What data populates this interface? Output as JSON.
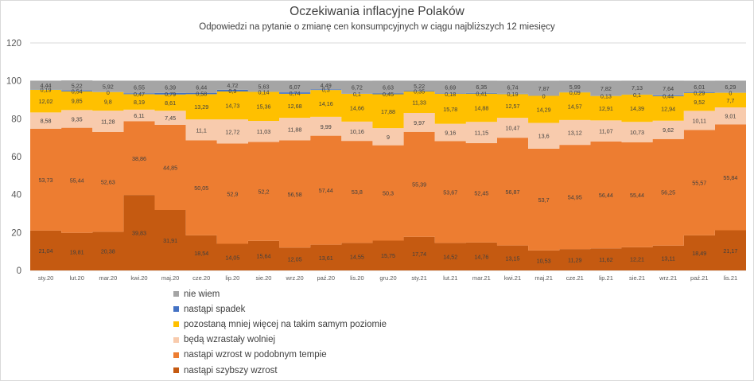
{
  "title": "Oczekiwania inflacyjne Polaków",
  "subtitle": "Odpowiedzi na pytanie o zmianę cen konsumpcyjnych w ciągu najbliższych 12 miesięcy",
  "legend": [
    {
      "label": "nie wiem",
      "color": "#a5a5a5"
    },
    {
      "label": "nastąpi spadek",
      "color": "#4472c4"
    },
    {
      "label": "pozostaną mniej więcej na takim samym poziomie",
      "color": "#ffc000"
    },
    {
      "label": "będą wzrastały wolniej",
      "color": "#f8cbad"
    },
    {
      "label": "nastąpi wzrost w podobnym tempie",
      "color": "#ed7d31"
    },
    {
      "label": "nastąpi szybszy wzrost",
      "color": "#c55a11"
    }
  ],
  "chart_data": {
    "type": "area",
    "stacked": true,
    "title": "Oczekiwania inflacyjne Polaków",
    "subtitle": "Odpowiedzi na pytanie o zmianę cen konsumpcyjnych w ciągu najbliższych 12 miesięcy",
    "xlabel": "",
    "ylabel": "",
    "ylim": [
      0,
      120
    ],
    "yticks": [
      0,
      20,
      40,
      60,
      80,
      100,
      120
    ],
    "grid": true,
    "legend_position": "bottom",
    "categories": [
      "sty.20",
      "lut.20",
      "mar.20",
      "kwi.20",
      "maj.20",
      "cze.20",
      "lip.20",
      "sie.20",
      "wrz.20",
      "paź.20",
      "lis.20",
      "gru.20",
      "sty.21",
      "lut.21",
      "mar.21",
      "kwi.21",
      "maj.21",
      "cze.21",
      "lip.21",
      "sie.21",
      "wrz.21",
      "paź.21",
      "lis.21"
    ],
    "series": [
      {
        "name": "nastąpi szybszy wzrost",
        "color": "#c55a11",
        "label_color": "#3f3f3f",
        "values": [
          21.04,
          19.81,
          20.38,
          39.83,
          31.91,
          18.54,
          14.05,
          15.64,
          12.05,
          13.61,
          14.55,
          15.75,
          17.74,
          14.52,
          14.76,
          13.15,
          10.53,
          11.29,
          11.62,
          12.21,
          13.11,
          18.49,
          21.17
        ]
      },
      {
        "name": "nastąpi wzrost w podobnym tempie",
        "color": "#ed7d31",
        "label_color": "#3f3f3f",
        "values": [
          53.73,
          55.44,
          52.63,
          38.86,
          44.85,
          50.05,
          52.9,
          52.2,
          56.58,
          57.44,
          53.8,
          50.3,
          55.39,
          53.67,
          52.45,
          56.87,
          53.7,
          54.95,
          56.44,
          55.44,
          56.25,
          55.57,
          55.84
        ]
      },
      {
        "name": "będą wzrastały wolniej",
        "color": "#f8cbad",
        "label_color": "#404040",
        "values": [
          8.58,
          9.35,
          11.28,
          6.11,
          7.45,
          11.1,
          12.72,
          11.03,
          11.88,
          9.99,
          10.16,
          9,
          9.97,
          9.16,
          11.15,
          10.47,
          13.6,
          13.12,
          11.07,
          10.73,
          9.62,
          10.11,
          9.01
        ]
      },
      {
        "name": "pozostaną mniej więcej na takim samym poziomie",
        "color": "#ffc000",
        "label_color": "#404040",
        "values": [
          12.02,
          9.85,
          9.8,
          8.19,
          8.61,
          13.29,
          14.73,
          15.36,
          12.68,
          14.16,
          14.66,
          17.88,
          11.33,
          15.78,
          14.88,
          12.57,
          14.29,
          14.57,
          12.91,
          14.39,
          12.94,
          9.52,
          7.7
        ]
      },
      {
        "name": "nastąpi spadek",
        "color": "#4472c4",
        "label_color": "#404040",
        "values": [
          0.19,
          0.54,
          0,
          0.47,
          0.79,
          0.58,
          0.9,
          0.14,
          0.74,
          0.3,
          0.1,
          0.45,
          0.35,
          0.18,
          0.41,
          0.19,
          0,
          0.09,
          0.13,
          0.1,
          0.44,
          0.29,
          0
        ]
      },
      {
        "name": "nie wiem",
        "color": "#a5a5a5",
        "label_color": "#404040",
        "values": [
          4.44,
          5.22,
          5.92,
          6.55,
          6.39,
          6.44,
          4.72,
          5.63,
          6.07,
          4.49,
          6.72,
          6.63,
          5.22,
          6.69,
          6.35,
          6.74,
          7.87,
          5.99,
          7.82,
          7.13,
          7.64,
          6.01,
          6.29
        ]
      }
    ]
  }
}
